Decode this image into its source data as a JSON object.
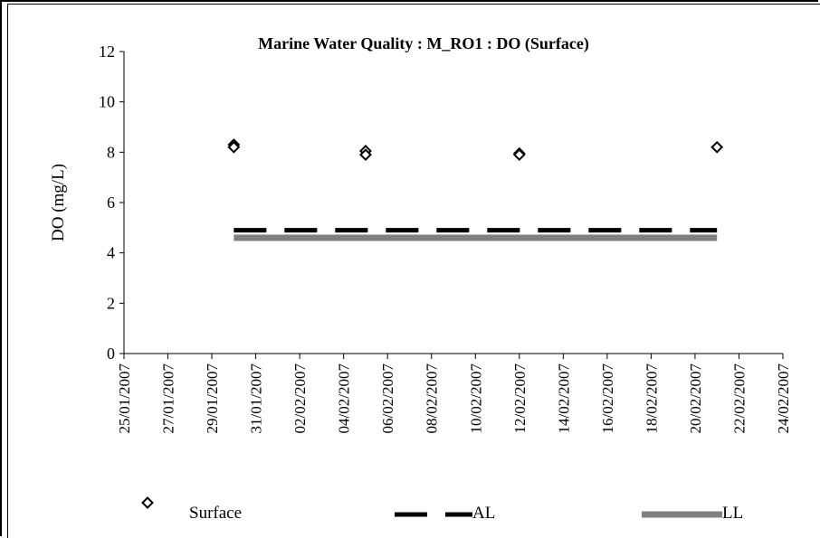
{
  "chart_data": {
    "type": "scatter",
    "title": "Marine Water Quality : M_RO1 : DO (Surface)",
    "xlabel": "",
    "ylabel": "DO (mg/L)",
    "ylim": [
      0,
      12
    ],
    "yticks": [
      "0",
      "2",
      "4",
      "6",
      "8",
      "10",
      "12"
    ],
    "xlim": [
      "25/01/2007",
      "24/02/2007"
    ],
    "xticks": [
      "25/01/2007",
      "27/01/2007",
      "29/01/2007",
      "31/01/2007",
      "02/02/2007",
      "04/02/2007",
      "06/02/2007",
      "08/02/2007",
      "10/02/2007",
      "12/02/2007",
      "14/02/2007",
      "16/02/2007",
      "18/02/2007",
      "20/02/2007",
      "22/02/2007",
      "24/02/2007"
    ],
    "grid": false,
    "legend_position": "bottom",
    "series": [
      {
        "name": "Surface",
        "style": "diamond-markers",
        "color": "#000000",
        "points": [
          {
            "x": "30/01/2007",
            "y": 8.3
          },
          {
            "x": "30/01/2007",
            "y": 8.2
          },
          {
            "x": "05/02/2007",
            "y": 8.05
          },
          {
            "x": "05/02/2007",
            "y": 7.9
          },
          {
            "x": "12/02/2007",
            "y": 7.95
          },
          {
            "x": "12/02/2007",
            "y": 7.9
          },
          {
            "x": "21/02/2007",
            "y": 8.2
          }
        ]
      },
      {
        "name": "AL",
        "style": "dashed-line",
        "color": "#000000",
        "points": [
          {
            "x": "30/01/2007",
            "y": 4.9
          },
          {
            "x": "21/02/2007",
            "y": 4.9
          }
        ]
      },
      {
        "name": "LL",
        "style": "solid-thick-line",
        "color": "#808080",
        "points": [
          {
            "x": "30/01/2007",
            "y": 4.6
          },
          {
            "x": "21/02/2007",
            "y": 4.6
          }
        ]
      }
    ]
  }
}
